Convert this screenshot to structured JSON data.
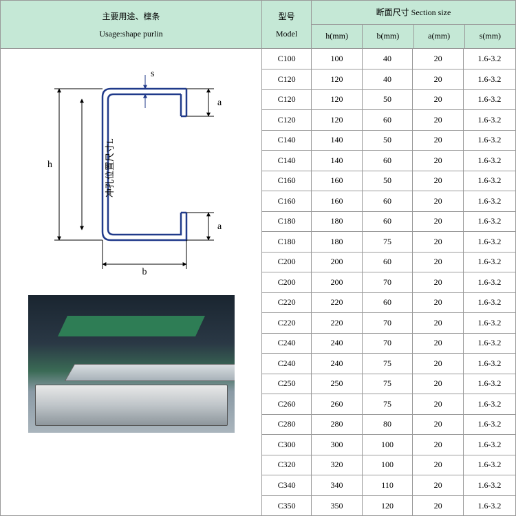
{
  "left_header": {
    "line1": "主要用途、檁条",
    "line2": "Usage:shape purlin"
  },
  "model_header": {
    "line1": "型号",
    "line2": "Model"
  },
  "section_header": {
    "title": "断面尺寸 Section size",
    "cols": {
      "h": "h(mm)",
      "b": "b(mm)",
      "a": "a(mm)",
      "s": "s(mm)"
    }
  },
  "diagram": {
    "labels": {
      "h": "h",
      "b": "b",
      "a": "a",
      "s": "s",
      "L": "冲孔位置尺寸L"
    },
    "stroke": "#203a8a",
    "dim_color": "#000"
  },
  "rows": [
    {
      "model": "C100",
      "h": "100",
      "b": "40",
      "a": "20",
      "s": "1.6-3.2"
    },
    {
      "model": "C120",
      "h": "120",
      "b": "40",
      "a": "20",
      "s": "1.6-3.2"
    },
    {
      "model": "C120",
      "h": "120",
      "b": "50",
      "a": "20",
      "s": "1.6-3.2"
    },
    {
      "model": "C120",
      "h": "120",
      "b": "60",
      "a": "20",
      "s": "1.6-3.2"
    },
    {
      "model": "C140",
      "h": "140",
      "b": "50",
      "a": "20",
      "s": "1.6-3.2"
    },
    {
      "model": "C140",
      "h": "140",
      "b": "60",
      "a": "20",
      "s": "1.6-3.2"
    },
    {
      "model": "C160",
      "h": "160",
      "b": "50",
      "a": "20",
      "s": "1.6-3.2"
    },
    {
      "model": "C160",
      "h": "160",
      "b": "60",
      "a": "20",
      "s": "1.6-3.2"
    },
    {
      "model": "C180",
      "h": "180",
      "b": "60",
      "a": "20",
      "s": "1.6-3.2"
    },
    {
      "model": "C180",
      "h": "180",
      "b": "75",
      "a": "20",
      "s": "1.6-3.2"
    },
    {
      "model": "C200",
      "h": "200",
      "b": "60",
      "a": "20",
      "s": "1.6-3.2"
    },
    {
      "model": "C200",
      "h": "200",
      "b": "70",
      "a": "20",
      "s": "1.6-3.2"
    },
    {
      "model": "C220",
      "h": "220",
      "b": "60",
      "a": "20",
      "s": "1.6-3.2"
    },
    {
      "model": "C220",
      "h": "220",
      "b": "70",
      "a": "20",
      "s": "1.6-3.2"
    },
    {
      "model": "C240",
      "h": "240",
      "b": "70",
      "a": "20",
      "s": "1.6-3.2"
    },
    {
      "model": "C240",
      "h": "240",
      "b": "75",
      "a": "20",
      "s": "1.6-3.2"
    },
    {
      "model": "C250",
      "h": "250",
      "b": "75",
      "a": "20",
      "s": "1.6-3.2"
    },
    {
      "model": "C260",
      "h": "260",
      "b": "75",
      "a": "20",
      "s": "1.6-3.2"
    },
    {
      "model": "C280",
      "h": "280",
      "b": "80",
      "a": "20",
      "s": "1.6-3.2"
    },
    {
      "model": "C300",
      "h": "300",
      "b": "100",
      "a": "20",
      "s": "1.6-3.2"
    },
    {
      "model": "C320",
      "h": "320",
      "b": "100",
      "a": "20",
      "s": "1.6-3.2"
    },
    {
      "model": "C340",
      "h": "340",
      "b": "110",
      "a": "20",
      "s": "1.6-3.2"
    },
    {
      "model": "C350",
      "h": "350",
      "b": "120",
      "a": "20",
      "s": "1.6-3.2"
    }
  ]
}
